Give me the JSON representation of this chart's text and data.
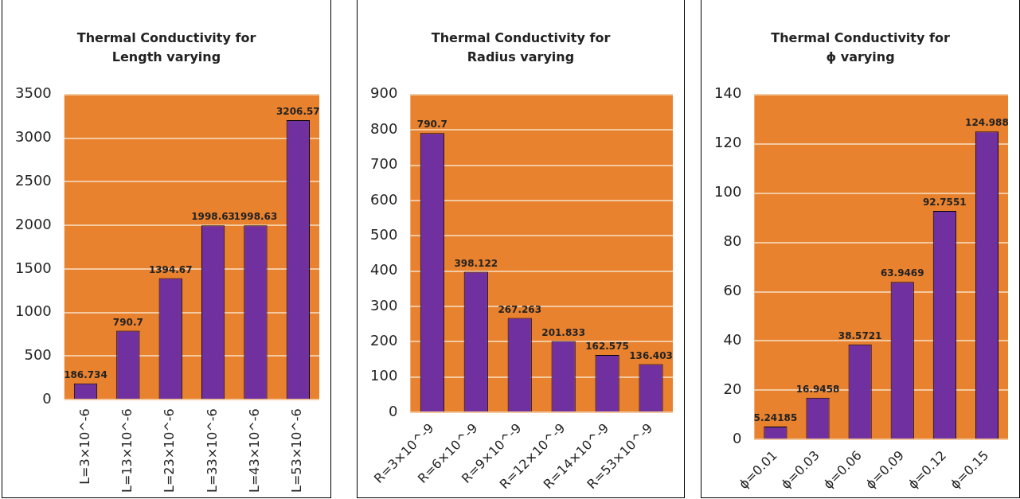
{
  "chart_data": [
    {
      "type": "bar",
      "title": "Thermal Conductivity for Length varying",
      "categories": [
        "L=3×10^-6",
        "L=13×10^-6",
        "L=23×10^-6",
        "L=33×10^-6",
        "L=43×10^-6",
        "L=53×10^-6"
      ],
      "values": [
        186.734,
        790.7,
        1394.67,
        1998.63,
        1998.63,
        3206.57
      ],
      "color": "#7030a0",
      "ylim": [
        0,
        3500
      ],
      "yticks": [
        0,
        500,
        1000,
        1500,
        2000,
        2500,
        3000,
        3500
      ],
      "grid": "y",
      "legend": false,
      "data_labels": true
    },
    {
      "type": "bar",
      "title": "Thermal Conductivity for Radius varying",
      "categories": [
        "R=3×10^-9",
        "R=6×10^-9",
        "R=9×10^-9",
        "R=12×10^-9",
        "R=14×10^-9",
        "R=53×10^-9"
      ],
      "values": [
        790.7,
        398.122,
        267.263,
        201.833,
        162.575,
        136.403
      ],
      "color": "#7030a0",
      "ylim": [
        0,
        900
      ],
      "yticks": [
        0,
        100,
        200,
        300,
        400,
        500,
        600,
        700,
        800,
        900
      ],
      "grid": "y",
      "legend": false,
      "data_labels": true
    },
    {
      "type": "bar",
      "title": "Thermal Conductivity for ϕ varying",
      "categories": [
        "ϕ=0.01",
        "ϕ=0.03",
        "ϕ=0.06",
        "ϕ=0.09",
        "ϕ=0.12",
        "ϕ=0.15"
      ],
      "values": [
        5.24185,
        16.9458,
        38.5721,
        63.9469,
        92.7551,
        124.988
      ],
      "color": "#7030a0",
      "ylim": [
        0,
        140
      ],
      "yticks": [
        0,
        20,
        40,
        60,
        80,
        100,
        120,
        140
      ],
      "grid": "y",
      "legend": false,
      "data_labels": true
    }
  ]
}
